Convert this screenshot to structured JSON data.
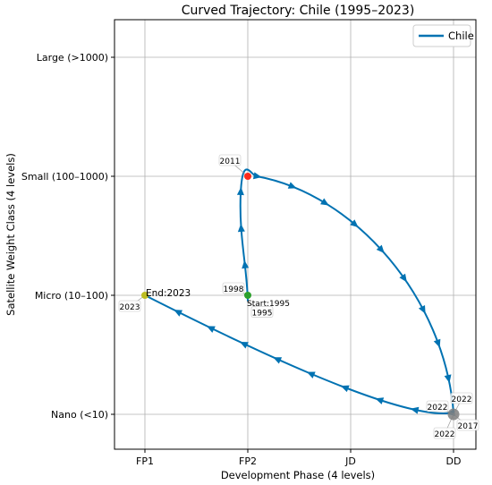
{
  "chart_data": {
    "type": "line",
    "title": "Curved Trajectory: Chile (1995–2023)",
    "xlabel": "Development Phase (4 levels)",
    "ylabel": "Satellite Weight Class (4 levels)",
    "x_categories": [
      "FP1",
      "FP2",
      "JD",
      "DD"
    ],
    "y_categories": [
      "Nano (<10)",
      "Micro (10–100)",
      "Small (100–1000)",
      "Large (>1000)"
    ],
    "xlim": [
      -0.3,
      3.2
    ],
    "ylim": [
      -0.15,
      3.3
    ],
    "grid": true,
    "legend_position": "top-right",
    "series": [
      {
        "name": "Chile",
        "color": "#0072b2",
        "points": [
          {
            "year": 1995,
            "x": 1.0,
            "y": 0.95
          },
          {
            "year": 1998,
            "x": 1.0,
            "y": 1.0
          },
          {
            "year": 2011,
            "x": 1.0,
            "y": 2.0
          },
          {
            "year": 2017,
            "x": 3.0,
            "y": 0.0
          },
          {
            "year": 2022,
            "x": 3.0,
            "y": 0.0
          },
          {
            "year": 2023,
            "x": 0.0,
            "y": 1.0
          }
        ]
      }
    ],
    "markers": [
      {
        "label": "Start:1995",
        "x": 1.0,
        "y": 1.0,
        "color": "#2ca02c"
      },
      {
        "label": "2011",
        "x": 1.0,
        "y": 2.0,
        "color": "#ff2a1a"
      },
      {
        "label": "End:2023",
        "x": 0.0,
        "y": 1.0,
        "color": "#bcbd22"
      },
      {
        "label": "",
        "x": 3.0,
        "y": 0.0,
        "color": "#7f7f7f"
      }
    ],
    "annotations": [
      {
        "text": "2011",
        "x": 1.0,
        "y": 2.0
      },
      {
        "text": "1998",
        "x": 1.0,
        "y": 1.0
      },
      {
        "text": "1995",
        "x": 1.0,
        "y": 0.95
      },
      {
        "text": "Start:1995",
        "x": 1.0,
        "y": 1.0
      },
      {
        "text": "End:2023",
        "x": 0.0,
        "y": 1.0
      },
      {
        "text": "2023",
        "x": 0.0,
        "y": 1.0
      },
      {
        "text": "2022",
        "x": 3.0,
        "y": 0.0
      },
      {
        "text": "2022",
        "x": 3.0,
        "y": 0.0
      },
      {
        "text": "2022",
        "x": 3.0,
        "y": 0.0
      },
      {
        "text": "2017",
        "x": 3.0,
        "y": 0.0
      }
    ]
  }
}
